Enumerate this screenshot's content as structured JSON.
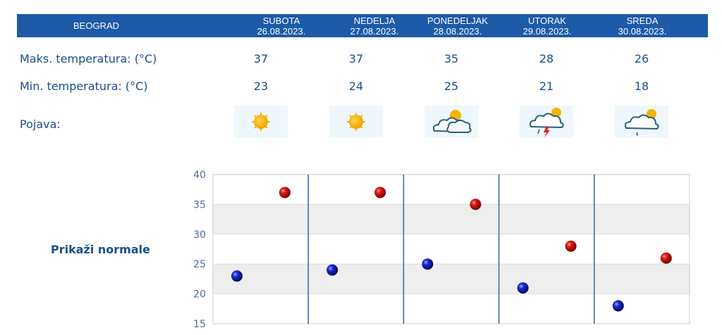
{
  "header": {
    "city": "BEOGRAD",
    "days": [
      {
        "name": "SUBOTA",
        "date": "26.08.2023."
      },
      {
        "name": "NEDELJA",
        "date": "27.08.2023."
      },
      {
        "name": "PONEDELJAK",
        "date": "28.08.2023."
      },
      {
        "name": "UTORAK",
        "date": "29.08.2023."
      },
      {
        "name": "SREDA",
        "date": "30.08.2023."
      }
    ]
  },
  "rows": {
    "max_label": "Maks. temperatura: (°C)",
    "min_label": "Min. temperatura: (°C)",
    "phen_label": "Pojava:"
  },
  "max_temps": [
    "37",
    "37",
    "35",
    "28",
    "26"
  ],
  "min_temps": [
    "23",
    "24",
    "25",
    "21",
    "18"
  ],
  "icons": [
    "sun-icon",
    "sun-icon",
    "sun-cloud-icon",
    "thunderstorm-icon",
    "sun-cloud-rain-icon"
  ],
  "normals_link": "Prikaži normale",
  "chart_data": {
    "type": "scatter",
    "categories": [
      "SUBOTA",
      "NEDELJA",
      "PONEDELJAK",
      "UTORAK",
      "SREDA"
    ],
    "series": [
      {
        "values": [
          37,
          37,
          35,
          28,
          26
        ],
        "color": "#cc0000"
      },
      {
        "values": [
          23,
          24,
          25,
          21,
          18
        ],
        "color": "#0a1fa8"
      }
    ],
    "ylim": [
      15,
      40
    ],
    "yticks": [
      "40",
      "35",
      "30",
      "25",
      "20",
      "15"
    ],
    "grid": true
  }
}
